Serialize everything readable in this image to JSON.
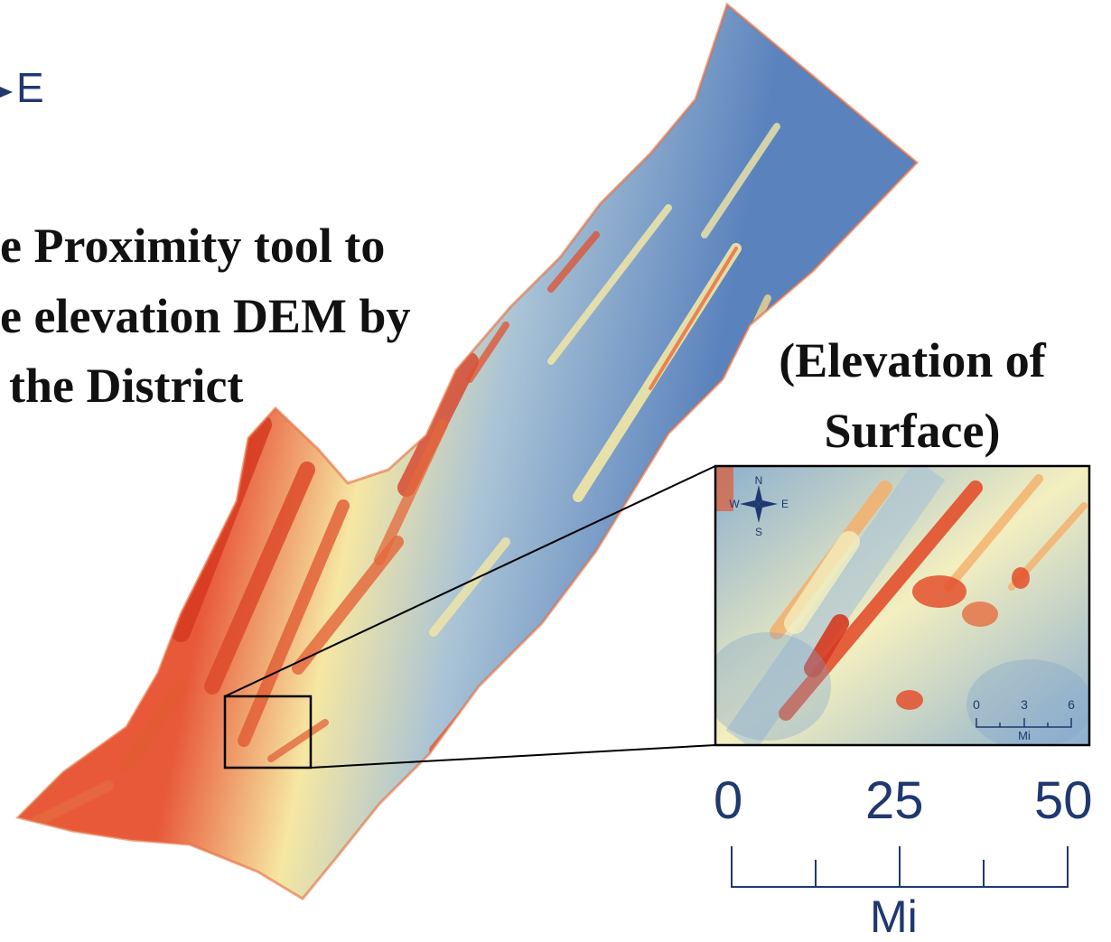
{
  "heading": {
    "line1": "e Proximity tool to",
    "line2": "e elevation DEM by",
    "line3": "the District"
  },
  "inset": {
    "title_line1": "(Elevation of",
    "title_line2": "Surface)",
    "compass": {
      "n": "N",
      "s": "S",
      "e": "E",
      "w": "W"
    },
    "scale": {
      "ticks": [
        "0",
        "3",
        "6"
      ],
      "unit": "Mi"
    }
  },
  "north_arrow_fragment": {
    "e_label": "E"
  },
  "main_scale": {
    "ticks": [
      "0",
      "25",
      "50"
    ],
    "unit": "Mi"
  },
  "colors": {
    "low": "#4f79ba",
    "mid_low": "#8db0cf",
    "mid": "#f6f3b8",
    "mid_high": "#f4b06b",
    "high": "#d73a22",
    "text_dark": "#111111",
    "scale_blue": "#1f3870"
  }
}
